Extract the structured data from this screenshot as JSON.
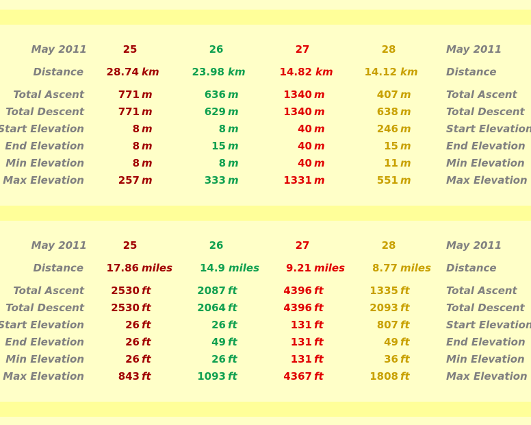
{
  "colors": {
    "d25": "#a00000",
    "d26": "#10a050",
    "d27": "#e00000",
    "d28": "#c8a000",
    "label": "#808080"
  },
  "metric": {
    "header": {
      "label": "May 2011",
      "days": [
        "25",
        "26",
        "27",
        "28"
      ]
    },
    "distance": {
      "label": "Distance",
      "values": [
        "28.74",
        "23.98",
        "14.82",
        "14.12"
      ],
      "unit": "km"
    },
    "rows": [
      {
        "label": "Total Ascent",
        "values": [
          "771",
          "636",
          "1340",
          "407"
        ],
        "unit": "m"
      },
      {
        "label": "Total Descent",
        "values": [
          "771",
          "629",
          "1340",
          "638"
        ],
        "unit": "m"
      },
      {
        "label": "Start Elevation",
        "values": [
          "8",
          "8",
          "40",
          "246"
        ],
        "unit": "m"
      },
      {
        "label": "End Elevation",
        "values": [
          "8",
          "15",
          "40",
          "15"
        ],
        "unit": "m"
      },
      {
        "label": "Min Elevation",
        "values": [
          "8",
          "8",
          "40",
          "11"
        ],
        "unit": "m"
      },
      {
        "label": "Max Elevation",
        "values": [
          "257",
          "333",
          "1331",
          "551"
        ],
        "unit": "m"
      }
    ]
  },
  "imperial": {
    "header": {
      "label": "May 2011",
      "days": [
        "25",
        "26",
        "27",
        "28"
      ]
    },
    "distance": {
      "label": "Distance",
      "values": [
        "17.86",
        "14.9",
        "9.21",
        "8.77"
      ],
      "unit": "miles"
    },
    "rows": [
      {
        "label": "Total Ascent",
        "values": [
          "2530",
          "2087",
          "4396",
          "1335"
        ],
        "unit": "ft"
      },
      {
        "label": "Total Descent",
        "values": [
          "2530",
          "2064",
          "4396",
          "2093"
        ],
        "unit": "ft"
      },
      {
        "label": "Start Elevation",
        "values": [
          "26",
          "26",
          "131",
          "807"
        ],
        "unit": "ft"
      },
      {
        "label": "End Elevation",
        "values": [
          "26",
          "49",
          "131",
          "49"
        ],
        "unit": "ft"
      },
      {
        "label": "Min Elevation",
        "values": [
          "26",
          "26",
          "131",
          "36"
        ],
        "unit": "ft"
      },
      {
        "label": "Max Elevation",
        "values": [
          "843",
          "1093",
          "4367",
          "1808"
        ],
        "unit": "ft"
      }
    ]
  }
}
